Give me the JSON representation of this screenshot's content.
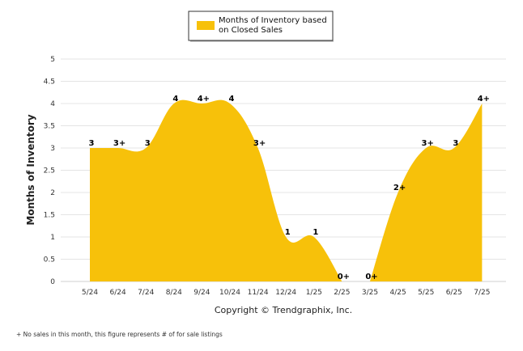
{
  "chart_data": {
    "type": "area",
    "categories": [
      "5/24",
      "6/24",
      "7/24",
      "8/24",
      "9/24",
      "10/24",
      "11/24",
      "12/24",
      "1/25",
      "2/25",
      "3/25",
      "4/25",
      "5/25",
      "6/25",
      "7/25"
    ],
    "series": [
      {
        "name": "Months of Inventory based on Closed Sales",
        "values": [
          3,
          3,
          3,
          4,
          4,
          4,
          3,
          1,
          1,
          0,
          0,
          2,
          3,
          3,
          4
        ],
        "labels": [
          "3",
          "3+",
          "3",
          "4",
          "4+",
          "4",
          "3+",
          "1",
          "1",
          "0+",
          "0+",
          "2+",
          "3+",
          "3",
          "4+"
        ],
        "color": "#f7c10a"
      }
    ],
    "ylabel": "Months of Inventory",
    "yticks": [
      "0",
      "0.5",
      "1",
      "1.5",
      "2",
      "2.5",
      "3",
      "3.5",
      "4",
      "4.5",
      "5"
    ],
    "ylim": [
      0,
      5
    ],
    "grid": true,
    "legend_position": "top-center",
    "area_gap_between": [
      "2/25",
      "3/25"
    ]
  },
  "copyright": "Copyright © Trendgraphix, Inc.",
  "footnote": "+ No sales in this month, this figure represents # of for sale listings",
  "legend": {
    "line1": "Months of Inventory based",
    "line2": "on Closed Sales"
  }
}
